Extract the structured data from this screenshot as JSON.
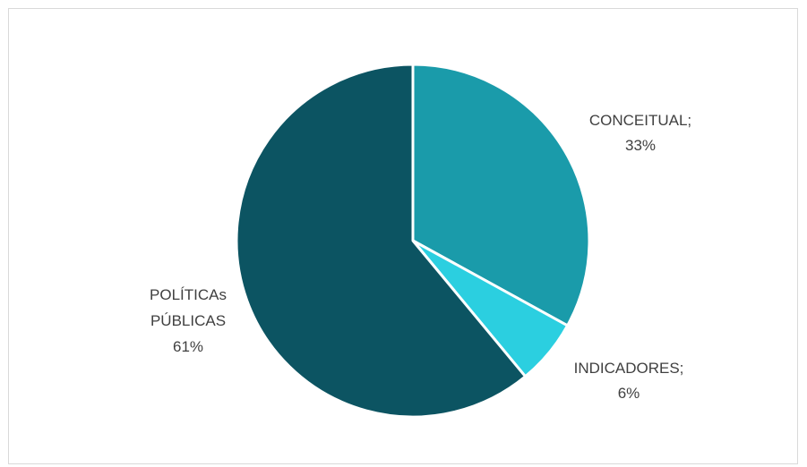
{
  "chart_data": {
    "type": "pie",
    "title": "",
    "colors": [
      "#1a9baa",
      "#2bcfe0",
      "#0c5462"
    ],
    "slices": [
      {
        "label_lines": [
          "CONCEITUAL;",
          "33%"
        ],
        "value": 33
      },
      {
        "label_lines": [
          "INDICADORES;",
          "6%"
        ],
        "value": 6
      },
      {
        "label_lines": [
          "POLÍTICAs",
          "PÚBLICAS",
          "61%"
        ],
        "value": 61
      }
    ],
    "legend": "none"
  }
}
